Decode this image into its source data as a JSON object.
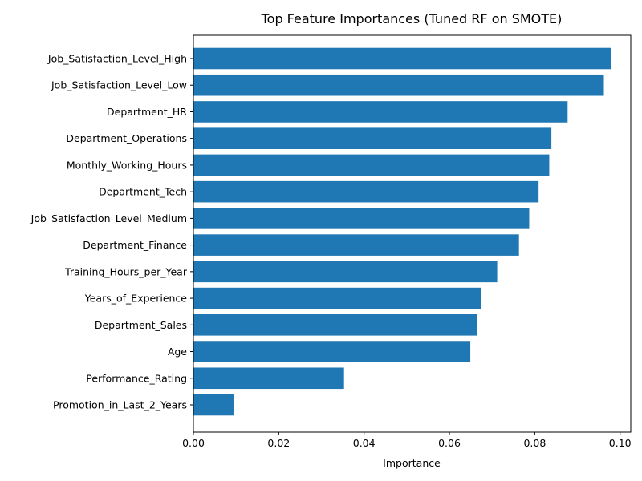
{
  "chart_data": {
    "type": "bar",
    "orientation": "horizontal",
    "title": "Top Feature Importances (Tuned RF on SMOTE)",
    "xlabel": "Importance",
    "ylabel": "",
    "xlim": [
      0,
      0.1025
    ],
    "xticks": [
      0.0,
      0.02,
      0.04,
      0.06,
      0.08,
      0.1
    ],
    "xtick_labels": [
      "0.00",
      "0.02",
      "0.04",
      "0.06",
      "0.08",
      "0.10"
    ],
    "grid": false,
    "bar_color": "#1f77b4",
    "categories": [
      "Job_Satisfaction_Level_High",
      "Job_Satisfaction_Level_Low",
      "Department_HR",
      "Department_Operations",
      "Monthly_Working_Hours",
      "Department_Tech",
      "Job_Satisfaction_Level_Medium",
      "Department_Finance",
      "Training_Hours_per_Year",
      "Years_of_Experience",
      "Department_Sales",
      "Age",
      "Performance_Rating",
      "Promotion_in_Last_2_Years"
    ],
    "values": [
      0.0978,
      0.0962,
      0.0877,
      0.0839,
      0.0834,
      0.0809,
      0.0787,
      0.0763,
      0.0712,
      0.0674,
      0.0665,
      0.0649,
      0.0353,
      0.0094
    ]
  }
}
